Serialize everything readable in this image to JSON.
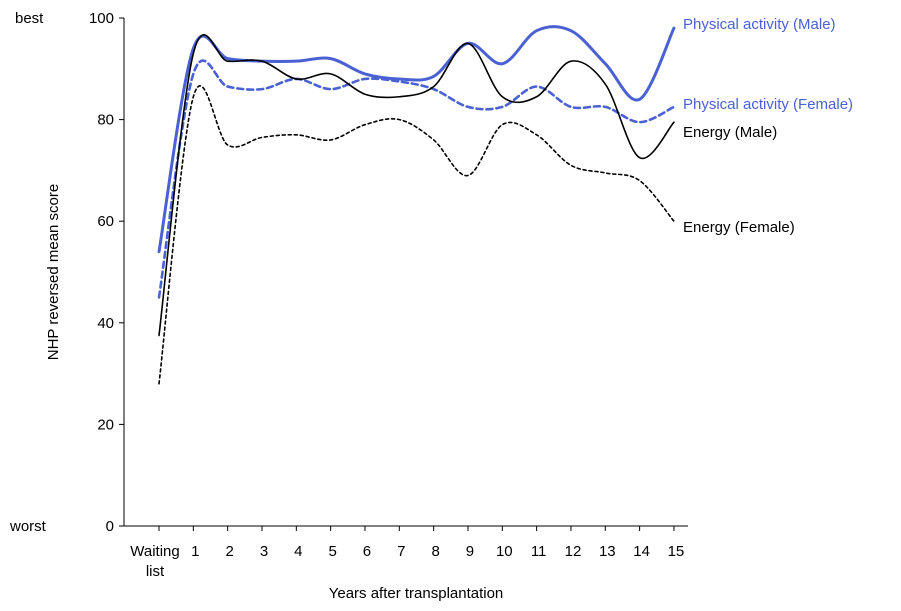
{
  "chart_data": {
    "type": "line",
    "title": "",
    "xlabel": "Years after transplantation",
    "ylabel": "NHP reversed mean score",
    "ylim": [
      0,
      100
    ],
    "yticks": [
      0,
      20,
      40,
      60,
      80,
      100
    ],
    "y_annotations": {
      "top": "best",
      "bottom": "worst"
    },
    "x_tick_labels": [
      "Waiting list",
      "1",
      "2",
      "3",
      "4",
      "5",
      "6",
      "7",
      "8",
      "9",
      "10",
      "11",
      "12",
      "13",
      "14",
      "15"
    ],
    "x": [
      0,
      1,
      2,
      3,
      4,
      5,
      6,
      7,
      8,
      9,
      10,
      11,
      12,
      13,
      14,
      15
    ],
    "grid": false,
    "legend": "inline-right",
    "series": [
      {
        "name": "Physical activity (Male)",
        "color": "#4a61d4",
        "style": "solid-thick",
        "values": [
          54,
          94,
          92,
          91.5,
          91.5,
          92,
          89,
          88,
          88.5,
          95,
          91,
          97.5,
          97.5,
          91,
          84,
          98
        ]
      },
      {
        "name": "Physical activity (Female)",
        "color": "#4a61d4",
        "style": "dashed",
        "values": [
          45,
          89,
          86.5,
          86,
          88,
          86,
          88,
          87.5,
          86,
          82.5,
          82.5,
          86.5,
          82.5,
          82.5,
          79.5,
          82.5
        ]
      },
      {
        "name": "Energy (Male)",
        "color": "#000000",
        "style": "solid-thin",
        "values": [
          37.5,
          93,
          91.5,
          91.5,
          88,
          89,
          85,
          84.5,
          86.5,
          95,
          84.5,
          84.5,
          91.5,
          87,
          72.5,
          79.5
        ]
      },
      {
        "name": "Energy (Female)",
        "color": "#000000",
        "style": "dotted",
        "values": [
          28,
          84.5,
          75,
          76.5,
          77,
          76,
          79,
          80,
          76,
          69,
          79,
          77,
          71,
          69.5,
          68,
          60
        ]
      }
    ]
  }
}
